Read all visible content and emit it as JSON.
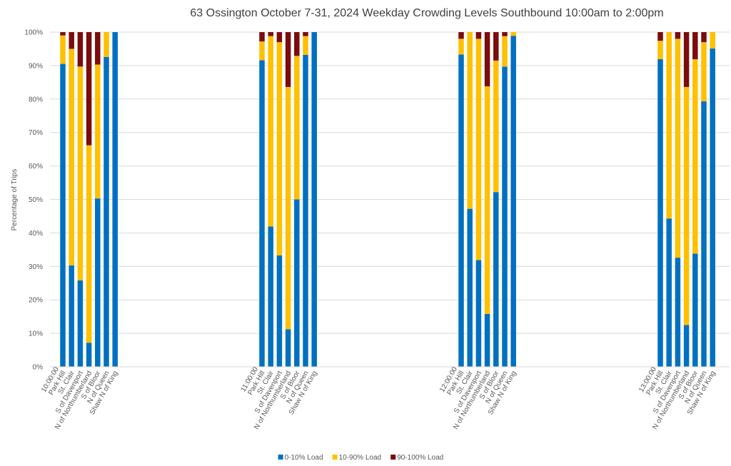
{
  "chart_data": {
    "type": "bar",
    "stacked": true,
    "title": "63 Ossington October 7-31, 2024  Weekday Crowding Levels Southbound 10:00am to 2:00pm",
    "ylabel": "Percentage of Trips",
    "groups": [
      "10:00:00",
      "11:00:00",
      "12:00:00",
      "13:00:00"
    ],
    "categories": [
      "Park Hill",
      "St. Clair",
      "S of Davenport",
      "N of Northumberland",
      "S of Bloor",
      "N of Queen",
      "Shaw N of King",
      "Park Hill",
      "St. Clair",
      "S of Davenport",
      "N of Northumberland",
      "S of Bloor",
      "N of Queen",
      "Shaw N of King",
      "Park Hill",
      "St. Clair",
      "S of Davenport",
      "N of Northumberland",
      "S of Bloor",
      "N of Queen",
      "Shaw N of King",
      "Park Hill",
      "St. Clair",
      "S of Davenport",
      "N of Northumberland",
      "S of Bloor",
      "N of Queen",
      "Shaw N of King"
    ],
    "series": [
      {
        "name": "0-10% Load",
        "color": "#0070c0",
        "values": [
          90.5,
          30.3,
          25.8,
          7.2,
          50.3,
          92.6,
          100,
          91.6,
          41.9,
          33.3,
          11.2,
          50,
          93.2,
          100,
          93.3,
          47.2,
          31.9,
          15.8,
          52.2,
          89.7,
          98.9,
          91.9,
          44.3,
          32.6,
          12.5,
          33.8,
          79.3,
          95.1
        ]
      },
      {
        "name": "10-90% Load",
        "color": "#ffc000",
        "values": [
          8.5,
          64.7,
          63.9,
          59,
          40,
          7.4,
          0,
          5.6,
          56.9,
          63.7,
          72.4,
          42.9,
          5.6,
          0,
          4.7,
          52.8,
          66.1,
          68,
          39.3,
          9.1,
          1.1,
          5.5,
          55.7,
          65.4,
          71.1,
          58.1,
          17.7,
          4.9
        ]
      },
      {
        "name": "90-100% Load",
        "color": "#7b0c0c",
        "values": [
          1,
          5,
          10.3,
          33.8,
          9.7,
          0,
          0,
          2.8,
          1.2,
          3,
          16.4,
          7.1,
          1.2,
          0,
          2,
          0,
          2,
          16.2,
          8.5,
          1.2,
          0,
          2.6,
          0,
          2,
          16.4,
          8.1,
          3,
          0
        ]
      }
    ],
    "ylim": [
      0,
      100
    ],
    "yticks": [
      {
        "value": 0,
        "label": "0%"
      },
      {
        "value": 10,
        "label": "10%"
      },
      {
        "value": 20,
        "label": "20%"
      },
      {
        "value": 30,
        "label": "30%"
      },
      {
        "value": 40,
        "label": "40%"
      },
      {
        "value": 50,
        "label": "50%"
      },
      {
        "value": 60,
        "label": "60%"
      },
      {
        "value": 70,
        "label": "70%"
      },
      {
        "value": 80,
        "label": "80%"
      },
      {
        "value": 90,
        "label": "90%"
      },
      {
        "value": 100,
        "label": "100%"
      }
    ],
    "grid": true,
    "legend": "bottom"
  }
}
